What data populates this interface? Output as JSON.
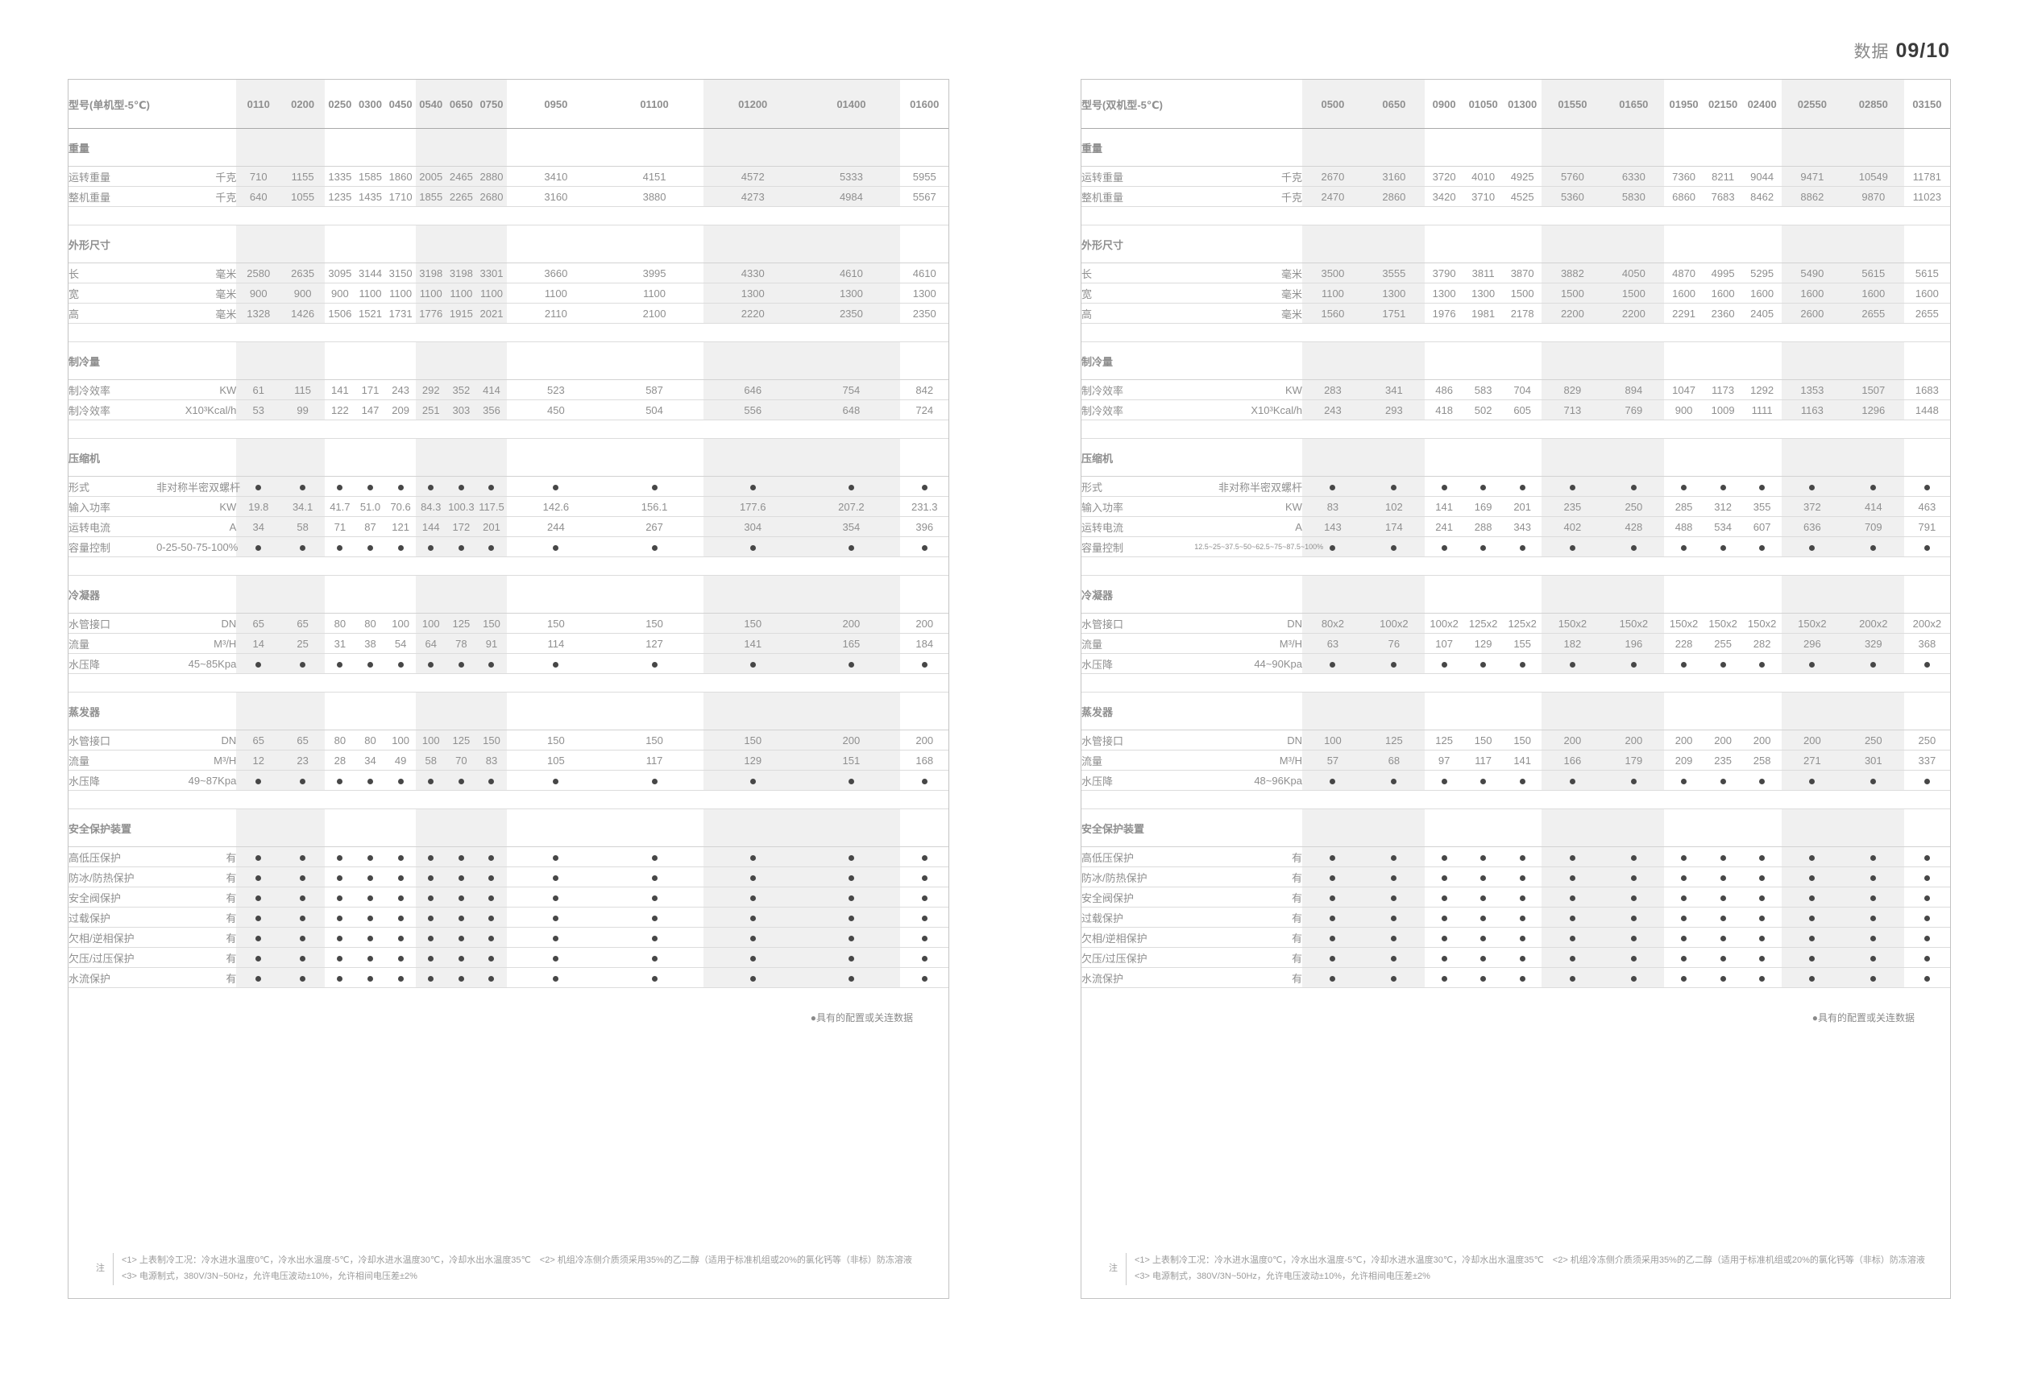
{
  "page": {
    "label_prefix": "数据",
    "page_number": "09/10"
  },
  "legend": "●具有的配置或关连数据",
  "notes": {
    "tag": "注",
    "line1": "<1> 上表制冷工况：冷水进水温度0℃，冷水出水温度-5℃，冷却水进水温度30℃，冷却水出水温度35℃　<2> 机组冷冻侧介质须采用35%的乙二醇（适用于标准机组或20%的氯化钙等（非标）防冻溶液",
    "line2": "<3> 电源制式，380V/3N~50Hz，允许电压波动±10%，允许相间电压差±2%"
  },
  "tables": [
    {
      "title": "型号(单机型-5℃)",
      "columns": [
        "0110",
        "0200",
        "0250",
        "0300",
        "0450",
        "0540",
        "0650",
        "0750",
        "0950",
        "01100",
        "01200",
        "01400",
        "01600"
      ],
      "stripes": [
        true,
        true,
        false,
        false,
        false,
        true,
        true,
        true,
        false,
        false,
        true,
        true,
        false
      ],
      "sections": [
        {
          "title": "重量",
          "rows": [
            {
              "label": "运转重量",
              "unit": "千克",
              "values": [
                "710",
                "1155",
                "1335",
                "1585",
                "1860",
                "2005",
                "2465",
                "2880",
                "3410",
                "4151",
                "4572",
                "5333",
                "5955"
              ]
            },
            {
              "label": "整机重量",
              "unit": "千克",
              "values": [
                "640",
                "1055",
                "1235",
                "1435",
                "1710",
                "1855",
                "2265",
                "2680",
                "3160",
                "3880",
                "4273",
                "4984",
                "5567"
              ]
            }
          ]
        },
        {
          "title": "外形尺寸",
          "rows": [
            {
              "label": "长",
              "unit": "毫米",
              "values": [
                "2580",
                "2635",
                "3095",
                "3144",
                "3150",
                "3198",
                "3198",
                "3301",
                "3660",
                "3995",
                "4330",
                "4610",
                "4610"
              ]
            },
            {
              "label": "宽",
              "unit": "毫米",
              "values": [
                "900",
                "900",
                "900",
                "1100",
                "1100",
                "1100",
                "1100",
                "1100",
                "1100",
                "1100",
                "1300",
                "1300",
                "1300"
              ]
            },
            {
              "label": "高",
              "unit": "毫米",
              "values": [
                "1328",
                "1426",
                "1506",
                "1521",
                "1731",
                "1776",
                "1915",
                "2021",
                "2110",
                "2100",
                "2220",
                "2350",
                "2350"
              ]
            }
          ]
        },
        {
          "title": "制冷量",
          "rows": [
            {
              "label": "制冷效率",
              "unit": "KW",
              "values": [
                "61",
                "115",
                "141",
                "171",
                "243",
                "292",
                "352",
                "414",
                "523",
                "587",
                "646",
                "754",
                "842"
              ]
            },
            {
              "label": "制冷效率",
              "unit": "X10³Kcal/h",
              "values": [
                "53",
                "99",
                "122",
                "147",
                "209",
                "251",
                "303",
                "356",
                "450",
                "504",
                "556",
                "648",
                "724"
              ]
            }
          ]
        },
        {
          "title": "压缩机",
          "rows": [
            {
              "label": "形式",
              "unit": "非对称半密双螺杆",
              "dots": true
            },
            {
              "label": "输入功率",
              "unit": "KW",
              "values": [
                "19.8",
                "34.1",
                "41.7",
                "51.0",
                "70.6",
                "84.3",
                "100.3",
                "117.5",
                "142.6",
                "156.1",
                "177.6",
                "207.2",
                "231.3"
              ]
            },
            {
              "label": "运转电流",
              "unit": "A",
              "values": [
                "34",
                "58",
                "71",
                "87",
                "121",
                "144",
                "172",
                "201",
                "244",
                "267",
                "304",
                "354",
                "396"
              ]
            },
            {
              "label": "容量控制",
              "unit": "0-25-50-75-100%",
              "dots": true
            }
          ]
        },
        {
          "title": "冷凝器",
          "rows": [
            {
              "label": "水管接口",
              "unit": "DN",
              "values": [
                "65",
                "65",
                "80",
                "80",
                "100",
                "100",
                "125",
                "150",
                "150",
                "150",
                "150",
                "200",
                "200"
              ]
            },
            {
              "label": "流量",
              "unit": "M³/H",
              "values": [
                "14",
                "25",
                "31",
                "38",
                "54",
                "64",
                "78",
                "91",
                "114",
                "127",
                "141",
                "165",
                "184"
              ]
            },
            {
              "label": "水压降",
              "unit": "45~85Kpa",
              "dots": true
            }
          ]
        },
        {
          "title": "蒸发器",
          "rows": [
            {
              "label": "水管接口",
              "unit": "DN",
              "values": [
                "65",
                "65",
                "80",
                "80",
                "100",
                "100",
                "125",
                "150",
                "150",
                "150",
                "150",
                "200",
                "200"
              ]
            },
            {
              "label": "流量",
              "unit": "M³/H",
              "values": [
                "12",
                "23",
                "28",
                "34",
                "49",
                "58",
                "70",
                "83",
                "105",
                "117",
                "129",
                "151",
                "168"
              ]
            },
            {
              "label": "水压降",
              "unit": "49~87Kpa",
              "dots": true
            }
          ]
        },
        {
          "title": "安全保护装置",
          "rows": [
            {
              "label": "高低压保护",
              "unit": "有",
              "dots": true
            },
            {
              "label": "防冰/防热保护",
              "unit": "有",
              "dots": true
            },
            {
              "label": "安全阀保护",
              "unit": "有",
              "dots": true
            },
            {
              "label": "过载保护",
              "unit": "有",
              "dots": true
            },
            {
              "label": "欠相/逆相保护",
              "unit": "有",
              "dots": true
            },
            {
              "label": "欠压/过压保护",
              "unit": "有",
              "dots": true
            },
            {
              "label": "水流保护",
              "unit": "有",
              "dots": true
            }
          ]
        }
      ]
    },
    {
      "title": "型号(双机型-5℃)",
      "columns": [
        "0500",
        "0650",
        "0900",
        "01050",
        "01300",
        "01550",
        "01650",
        "01950",
        "02150",
        "02400",
        "02550",
        "02850",
        "03150"
      ],
      "stripes": [
        true,
        true,
        false,
        false,
        false,
        true,
        true,
        false,
        false,
        false,
        true,
        true,
        false
      ],
      "sections": [
        {
          "title": "重量",
          "rows": [
            {
              "label": "运转重量",
              "unit": "千克",
              "values": [
                "2670",
                "3160",
                "3720",
                "4010",
                "4925",
                "5760",
                "6330",
                "7360",
                "8211",
                "9044",
                "9471",
                "10549",
                "11781"
              ]
            },
            {
              "label": "整机重量",
              "unit": "千克",
              "values": [
                "2470",
                "2860",
                "3420",
                "3710",
                "4525",
                "5360",
                "5830",
                "6860",
                "7683",
                "8462",
                "8862",
                "9870",
                "11023"
              ]
            }
          ]
        },
        {
          "title": "外形尺寸",
          "rows": [
            {
              "label": "长",
              "unit": "毫米",
              "values": [
                "3500",
                "3555",
                "3790",
                "3811",
                "3870",
                "3882",
                "4050",
                "4870",
                "4995",
                "5295",
                "5490",
                "5615",
                "5615"
              ]
            },
            {
              "label": "宽",
              "unit": "毫米",
              "values": [
                "1100",
                "1300",
                "1300",
                "1300",
                "1500",
                "1500",
                "1500",
                "1600",
                "1600",
                "1600",
                "1600",
                "1600",
                "1600"
              ]
            },
            {
              "label": "高",
              "unit": "毫米",
              "values": [
                "1560",
                "1751",
                "1976",
                "1981",
                "2178",
                "2200",
                "2200",
                "2291",
                "2360",
                "2405",
                "2600",
                "2655",
                "2655"
              ]
            }
          ]
        },
        {
          "title": "制冷量",
          "rows": [
            {
              "label": "制冷效率",
              "unit": "KW",
              "values": [
                "283",
                "341",
                "486",
                "583",
                "704",
                "829",
                "894",
                "1047",
                "1173",
                "1292",
                "1353",
                "1507",
                "1683"
              ]
            },
            {
              "label": "制冷效率",
              "unit": "X10³Kcal/h",
              "values": [
                "243",
                "293",
                "418",
                "502",
                "605",
                "713",
                "769",
                "900",
                "1009",
                "1111",
                "1163",
                "1296",
                "1448"
              ]
            }
          ]
        },
        {
          "title": "压缩机",
          "rows": [
            {
              "label": "形式",
              "unit": "非对称半密双螺杆",
              "dots": true
            },
            {
              "label": "输入功率",
              "unit": "KW",
              "values": [
                "83",
                "102",
                "141",
                "169",
                "201",
                "235",
                "250",
                "285",
                "312",
                "355",
                "372",
                "414",
                "463"
              ]
            },
            {
              "label": "运转电流",
              "unit": "A",
              "values": [
                "143",
                "174",
                "241",
                "288",
                "343",
                "402",
                "428",
                "488",
                "534",
                "607",
                "636",
                "709",
                "791"
              ]
            },
            {
              "label": "容量控制",
              "unit": "12.5~25~37.5~50~62.5~75~87.5~100%",
              "dots": true
            }
          ]
        },
        {
          "title": "冷凝器",
          "rows": [
            {
              "label": "水管接口",
              "unit": "DN",
              "values": [
                "80x2",
                "100x2",
                "100x2",
                "125x2",
                "125x2",
                "150x2",
                "150x2",
                "150x2",
                "150x2",
                "150x2",
                "150x2",
                "200x2",
                "200x2"
              ]
            },
            {
              "label": "流量",
              "unit": "M³/H",
              "values": [
                "63",
                "76",
                "107",
                "129",
                "155",
                "182",
                "196",
                "228",
                "255",
                "282",
                "296",
                "329",
                "368"
              ]
            },
            {
              "label": "水压降",
              "unit": "44~90Kpa",
              "dots": true
            }
          ]
        },
        {
          "title": "蒸发器",
          "rows": [
            {
              "label": "水管接口",
              "unit": "DN",
              "values": [
                "100",
                "125",
                "125",
                "150",
                "150",
                "200",
                "200",
                "200",
                "200",
                "200",
                "200",
                "250",
                "250"
              ]
            },
            {
              "label": "流量",
              "unit": "M³/H",
              "values": [
                "57",
                "68",
                "97",
                "117",
                "141",
                "166",
                "179",
                "209",
                "235",
                "258",
                "271",
                "301",
                "337"
              ]
            },
            {
              "label": "水压降",
              "unit": "48~96Kpa",
              "dots": true
            }
          ]
        },
        {
          "title": "安全保护装置",
          "rows": [
            {
              "label": "高低压保护",
              "unit": "有",
              "dots": true
            },
            {
              "label": "防冰/防热保护",
              "unit": "有",
              "dots": true
            },
            {
              "label": "安全阀保护",
              "unit": "有",
              "dots": true
            },
            {
              "label": "过载保护",
              "unit": "有",
              "dots": true
            },
            {
              "label": "欠相/逆相保护",
              "unit": "有",
              "dots": true
            },
            {
              "label": "欠压/过压保护",
              "unit": "有",
              "dots": true
            },
            {
              "label": "水流保护",
              "unit": "有",
              "dots": true
            }
          ]
        }
      ]
    }
  ]
}
